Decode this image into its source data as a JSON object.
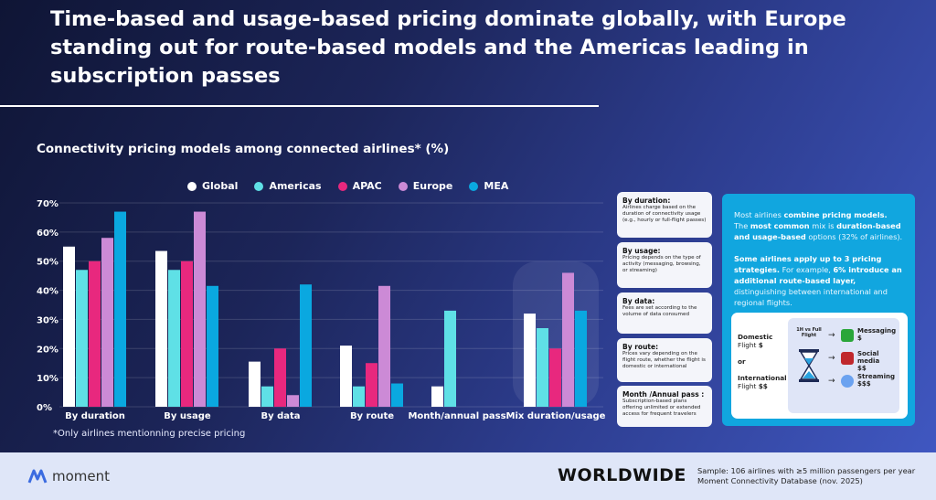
{
  "title": "Time-based and usage-based pricing dominate globally, with Europe standing out for route-based models and the Americas leading in subscription passes",
  "chart_data": {
    "type": "bar",
    "title": "Connectivity pricing models among connected airlines* (%)",
    "categories": [
      "By duration",
      "By usage",
      "By data",
      "By route",
      "Month/annual pass",
      "Mix duration/usage"
    ],
    "series": [
      {
        "name": "Global",
        "color": "#ffffff",
        "values": [
          55,
          53.5,
          15.5,
          21,
          7,
          32
        ]
      },
      {
        "name": "Americas",
        "color": "#5fe0e6",
        "values": [
          47,
          47,
          7,
          7,
          33,
          27
        ]
      },
      {
        "name": "APAC",
        "color": "#e8287e",
        "values": [
          50,
          50,
          20,
          15,
          null,
          20
        ]
      },
      {
        "name": "Europe",
        "color": "#cc8ad6",
        "values": [
          58,
          67,
          4,
          41.5,
          null,
          46
        ]
      },
      {
        "name": "MEA",
        "color": "#0aa8e0",
        "values": [
          67,
          41.5,
          42,
          8,
          null,
          33
        ]
      }
    ],
    "ylim": [
      0,
      70
    ],
    "yticks": [
      "0%",
      "10%",
      "20%",
      "30%",
      "40%",
      "50%",
      "60%",
      "70%"
    ],
    "grid": true,
    "legend": "top",
    "highlight": "Mix duration/usage",
    "footnote": "*Only airlines mentionning precise pricing"
  },
  "descriptions": [
    {
      "title": "By duration:",
      "text": "Airlines charge based on the duration of connectivity usage (e.g., hourly or full-flight passes)"
    },
    {
      "title": "By usage:",
      "text": "Pricing depends on the type of activity (messaging, browsing, or streaming)"
    },
    {
      "title": "By data:",
      "text": "Fees are set according to the volume of data consumed"
    },
    {
      "title": "By route:",
      "text": "Prices vary depending on the flight route, whether the flight is domestic or international"
    },
    {
      "title": "Month /Annual pass :",
      "text": "Subscription-based plans offering unlimited or extended access for frequent travelers"
    }
  ],
  "panel": {
    "p1": [
      "Most airlines ",
      "combine pricing models.",
      " The ",
      "most common",
      " mix is ",
      "duration-based and usage-based",
      " options (32% of airlines)."
    ],
    "p2": [
      "Some airlines apply up to 3 pricing strategies.",
      " For example, ",
      "6% introduce an additional route-based layer,",
      " distinguishing between international and regional flights."
    ],
    "domestic": "Domestic",
    "domestic_flight": "Flight",
    "domestic_price": "$",
    "or": "or",
    "international": "International",
    "international_flight": "Flight",
    "international_price": "$$",
    "hourglass_label": "1H vs Full Flight",
    "items": [
      {
        "label": "Messaging",
        "price": "$"
      },
      {
        "label": "Social media",
        "price": "$$"
      },
      {
        "label": "Streaming",
        "price": "$$$"
      }
    ]
  },
  "footer": {
    "brand": "moment",
    "region": "WORLDWIDE",
    "sample": "Sample: 106 airlines with ≥5 million passengers per year",
    "source": "Moment Connectivity Database (nov. 2025)"
  }
}
